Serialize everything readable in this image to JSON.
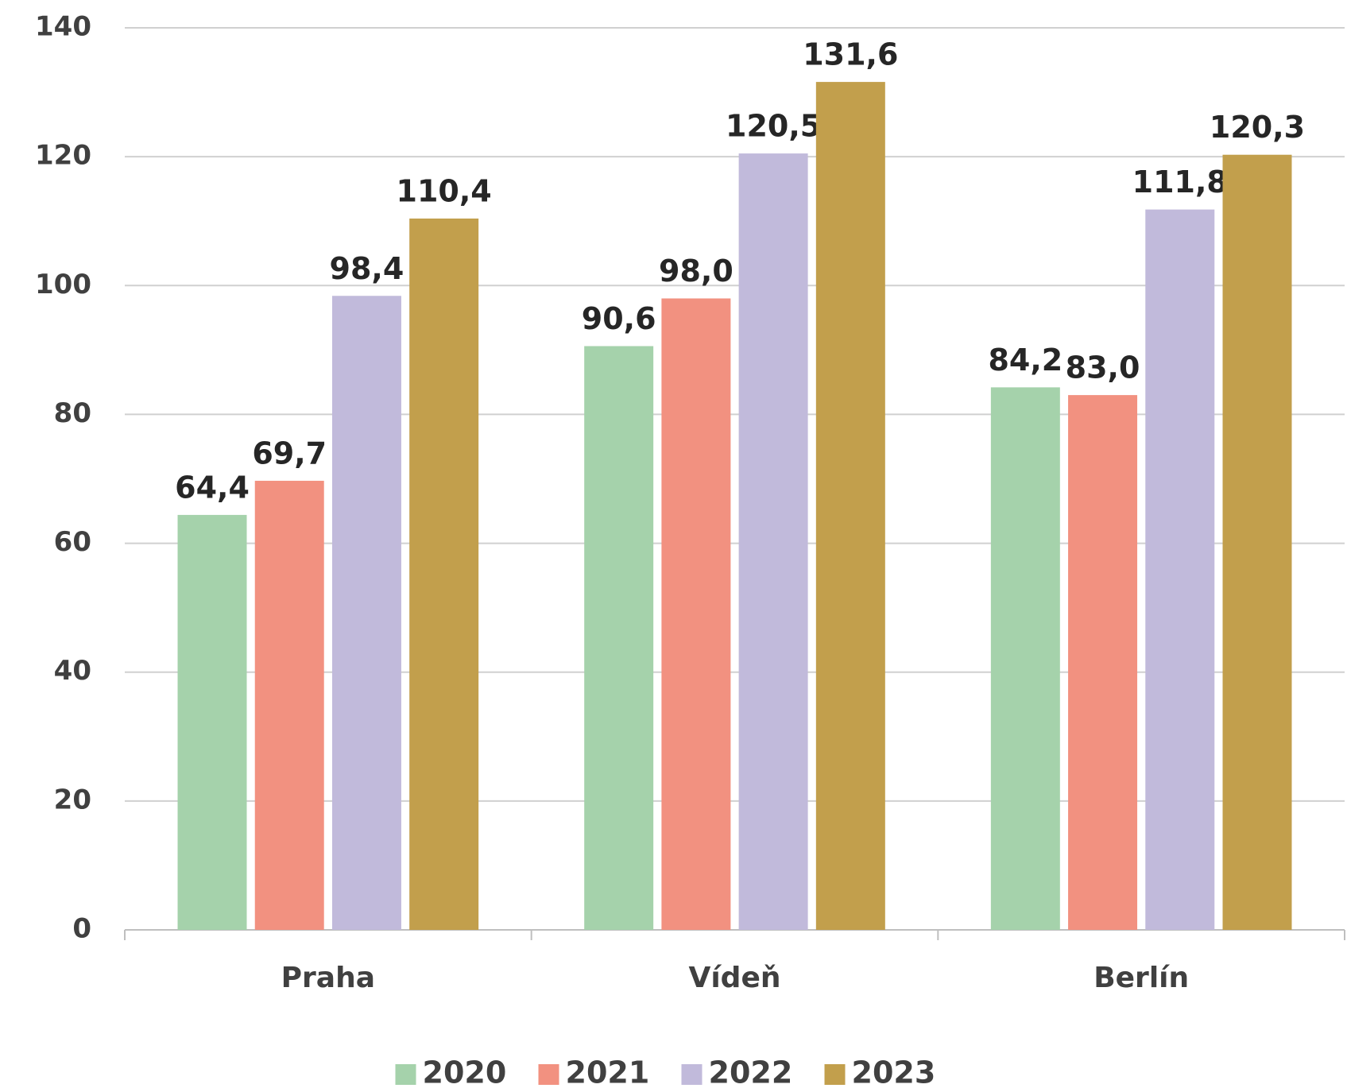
{
  "chart_data": {
    "type": "bar",
    "categories": [
      "Praha",
      "Vídeň",
      "Berlín"
    ],
    "series": [
      {
        "name": "2020",
        "color": "#a5d2ab",
        "values": [
          64.4,
          90.6,
          84.2
        ],
        "value_labels": [
          "64,4",
          "90,6",
          "84,2"
        ]
      },
      {
        "name": "2021",
        "color": "#f29180",
        "values": [
          69.7,
          98.0,
          83.0
        ],
        "value_labels": [
          "69,7",
          "98,0",
          "83,0"
        ]
      },
      {
        "name": "2022",
        "color": "#c1badb",
        "values": [
          98.4,
          120.5,
          111.8
        ],
        "value_labels": [
          "98,4",
          "120,5",
          "111,8"
        ]
      },
      {
        "name": "2023",
        "color": "#c29f4c",
        "values": [
          110.4,
          131.6,
          120.3
        ],
        "value_labels": [
          "110,4",
          "131,6",
          "120,3"
        ]
      }
    ],
    "ylim": [
      0,
      140
    ],
    "yticks": [
      0,
      20,
      40,
      60,
      80,
      100,
      120,
      140
    ],
    "grid": true,
    "legend": "bottom"
  }
}
